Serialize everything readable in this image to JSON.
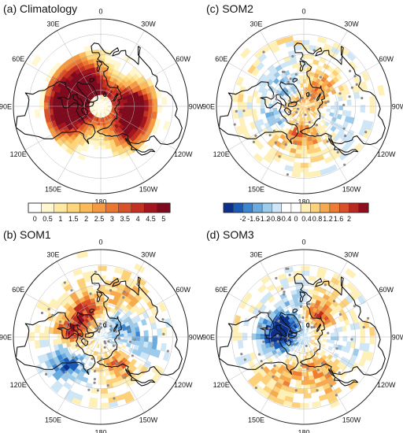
{
  "panels": [
    {
      "id": "a",
      "title": "(a) Climatology",
      "lon_labels": [
        "0",
        "30W",
        "60W",
        "90W",
        "120W",
        "150W",
        "180",
        "150E",
        "120E",
        "90E",
        "60E",
        "30E"
      ],
      "field": "climatology"
    },
    {
      "id": "c",
      "title": "(c) SOM2",
      "lon_labels": [
        "0",
        "30W",
        "60W",
        "90W",
        "120W",
        "150W",
        "180",
        "150E",
        "120E",
        "90E",
        "60E",
        "30E"
      ],
      "field": "som2"
    },
    {
      "id": "b",
      "title": "(b) SOM1",
      "lon_labels": [
        "0",
        "30W",
        "60W",
        "90W",
        "120W",
        "150W",
        "180",
        "150E",
        "120E",
        "90E",
        "60E",
        "30E"
      ],
      "field": "som1"
    },
    {
      "id": "d",
      "title": "(d) SOM3",
      "lon_labels": [
        "0",
        "30W",
        "60W",
        "90W",
        "120W",
        "150W",
        "180",
        "150E",
        "120E",
        "90E",
        "60E",
        "30E"
      ],
      "field": "som3"
    }
  ],
  "colorbars": [
    {
      "id": "clim",
      "labels": [
        "0",
        "0.5",
        "1",
        "1.5",
        "2",
        "2.5",
        "3",
        "3.5",
        "4",
        "4.5",
        "5"
      ],
      "colors": [
        "#ffffff",
        "#fff7d0",
        "#ffe9a0",
        "#fdd57a",
        "#fbb95a",
        "#f59a40",
        "#ea7631",
        "#d85128",
        "#c23121",
        "#a3161f",
        "#7e0a1e"
      ]
    },
    {
      "id": "anom",
      "labels": [
        "-2",
        "-1.6",
        "-1.2",
        "-0.8",
        "-0.4",
        "0",
        "0.4",
        "0.8",
        "1.2",
        "1.6",
        "2"
      ],
      "colors": [
        "#0b2f8a",
        "#1a5ab8",
        "#3b86d0",
        "#6aacdf",
        "#9dcbec",
        "#cfe6f6",
        "#ffffff",
        "#ffffff",
        "#fff0b8",
        "#fdd07a",
        "#f8a94c",
        "#ee7d33",
        "#d9502a",
        "#bb2a22",
        "#8d0f1e"
      ]
    }
  ]
}
